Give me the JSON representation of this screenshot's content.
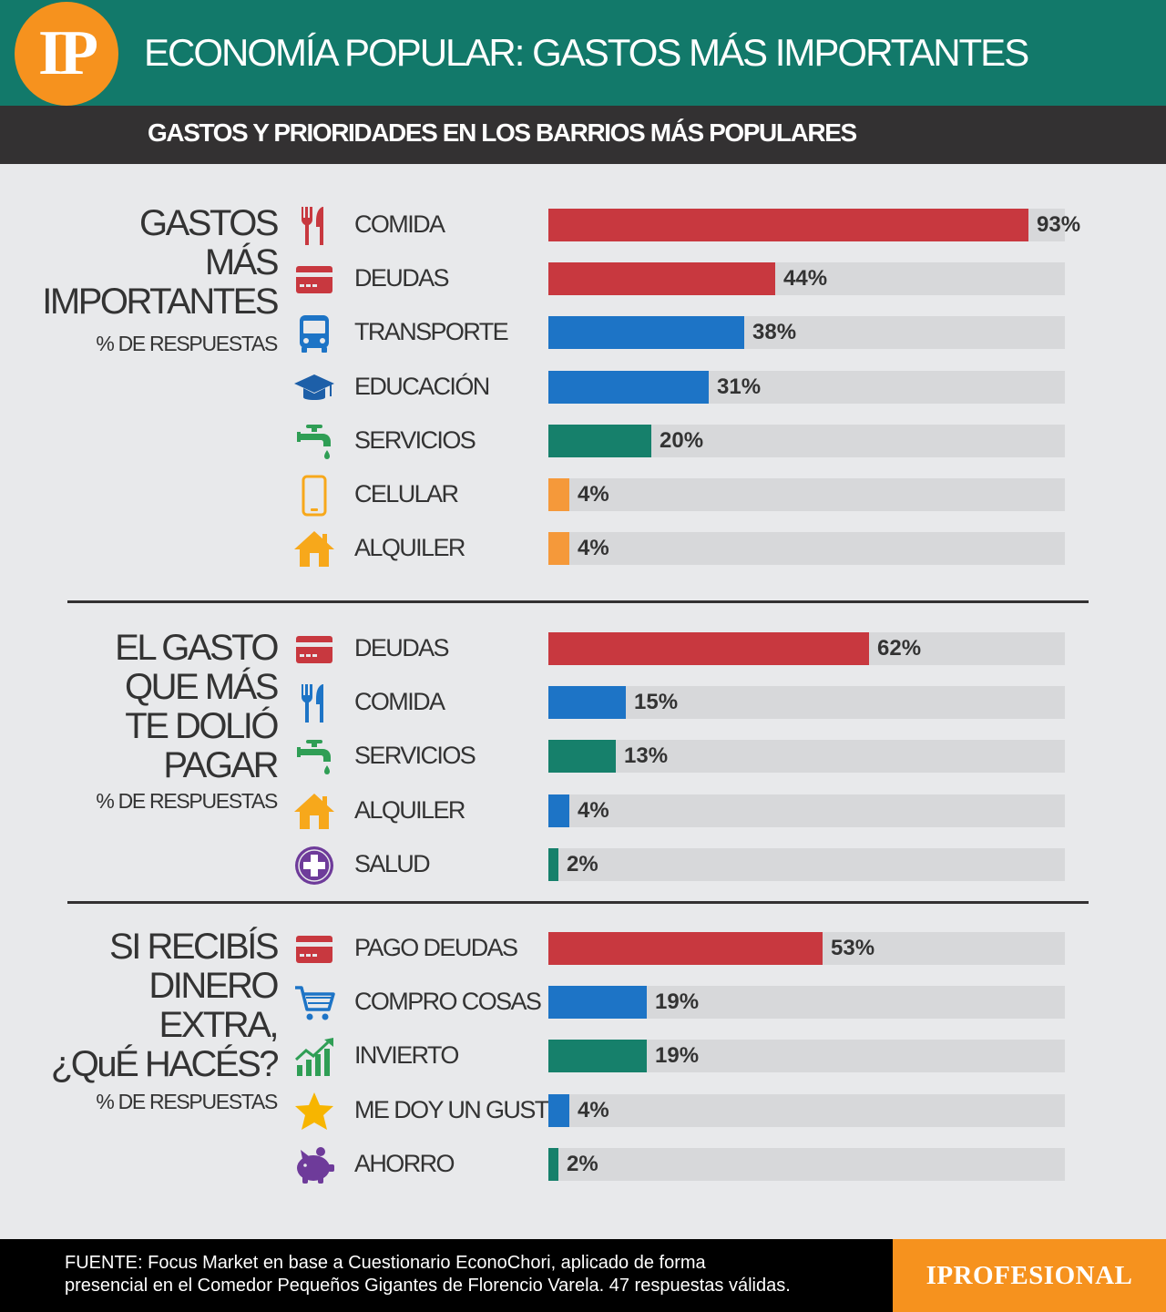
{
  "header": {
    "logo": "IP",
    "title": "ECONOMÍA POPULAR: GASTOS MÁS IMPORTANTES",
    "subtitle": "GASTOS Y PRIORIDADES EN LOS BARRIOS MÁS POPULARES"
  },
  "colors": {
    "red": "#c8383f",
    "blue": "#1d74c6",
    "green": "#16806b",
    "orange": "#f5993a",
    "track": "#d7d8da"
  },
  "sections": [
    {
      "title_lines": [
        "GASTOS",
        "MÁS",
        "IMPORTANTES"
      ],
      "subtitle": "% DE RESPUESTAS"
    },
    {
      "title_lines": [
        "EL GASTO",
        "QUE MÁS",
        "TE DOLIÓ",
        "PAGAR"
      ],
      "subtitle": "% DE RESPUESTAS"
    },
    {
      "title_lines": [
        "SI RECIBÍS",
        "DINERO",
        "EXTRA,",
        "¿QuÉ HACÉS?"
      ],
      "subtitle": "% DE RESPUESTAS"
    }
  ],
  "chart_data": [
    {
      "type": "bar",
      "orientation": "horizontal",
      "xlim": [
        0,
        100
      ],
      "categories": [
        "COMIDA",
        "DEUDAS",
        "TRANSPORTE",
        "EDUCACIÓN",
        "SERVICIOS",
        "CELULAR",
        "ALQUILER"
      ],
      "values": [
        93,
        44,
        38,
        31,
        20,
        4,
        4
      ],
      "value_labels": [
        "93%",
        "44%",
        "38%",
        "31%",
        "20%",
        "4%",
        "4%"
      ],
      "colors": [
        "red",
        "red",
        "blue",
        "blue",
        "green",
        "orange",
        "orange"
      ],
      "icons": [
        "fork-knife-icon",
        "credit-card-icon",
        "bus-icon",
        "graduation-cap-icon",
        "faucet-icon",
        "cellphone-icon",
        "house-icon"
      ]
    },
    {
      "type": "bar",
      "orientation": "horizontal",
      "xlim": [
        0,
        100
      ],
      "categories": [
        "DEUDAS",
        "COMIDA",
        "SERVICIOS",
        "ALQUILER",
        "SALUD"
      ],
      "values": [
        62,
        15,
        13,
        4,
        2
      ],
      "value_labels": [
        "62%",
        "15%",
        "13%",
        "4%",
        "2%"
      ],
      "colors": [
        "red",
        "blue",
        "green",
        "blue",
        "green"
      ],
      "icons": [
        "credit-card-icon",
        "fork-knife-icon",
        "faucet-icon",
        "house-icon",
        "health-cross-icon"
      ]
    },
    {
      "type": "bar",
      "orientation": "horizontal",
      "xlim": [
        0,
        100
      ],
      "categories": [
        "PAGO DEUDAS",
        "COMPRO COSAS",
        "INVIERTO",
        "ME DOY UN GUSTO",
        "AHORRO"
      ],
      "values": [
        53,
        19,
        19,
        4,
        2
      ],
      "value_labels": [
        "53%",
        "19%",
        "19%",
        "4%",
        "2%"
      ],
      "colors": [
        "red",
        "blue",
        "green",
        "blue",
        "green"
      ],
      "icons": [
        "credit-card-icon",
        "shopping-cart-icon",
        "growth-chart-icon",
        "star-icon",
        "piggy-bank-icon"
      ]
    }
  ],
  "footer": {
    "source_lines": [
      "FUENTE: Focus Market en base a Cuestionario EconoChori, aplicado de forma",
      "presencial en el Comedor Pequeños Gigantes de Florencio Varela. 47 respuestas válidas."
    ],
    "brand": "IPROFESIONAL"
  }
}
